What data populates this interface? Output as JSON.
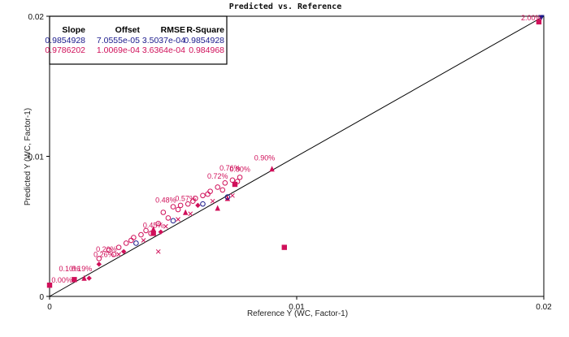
{
  "chart_data": {
    "type": "scatter",
    "title": "Predicted vs. Reference",
    "xlabel": "Reference Y (WC, Factor-1)",
    "ylabel": "Predicted Y (WC, Factor-1)",
    "xlim": [
      0,
      0.02
    ],
    "ylim": [
      0,
      0.02
    ],
    "x_ticks": [
      0,
      0.01,
      0.02
    ],
    "y_ticks": [
      0,
      0.01,
      0.02
    ],
    "x_tick_labels": [
      "0",
      "0.01",
      "0.02"
    ],
    "y_tick_labels": [
      "0",
      "0.01",
      "0.02"
    ],
    "grid": false,
    "reference_line": {
      "from": [
        0,
        0
      ],
      "to": [
        0.02,
        0.02
      ]
    },
    "stats_table": {
      "headers": [
        "Slope",
        "Offset",
        "RMSE",
        "R-Square"
      ],
      "rows": [
        {
          "color": "#1a1a8c",
          "values": [
            "0.9854928",
            "7.0555e-05",
            "3.5037e-04",
            "0.9854928"
          ]
        },
        {
          "color": "#d0105a",
          "values": [
            "0.9786202",
            "1.0069e-04",
            "3.6364e-04",
            "0.984968"
          ]
        }
      ]
    },
    "point_labels": [
      {
        "text": "2.00%",
        "x": 0.0195,
        "y": 0.0197
      },
      {
        "text": "0.90%",
        "x": 0.0087,
        "y": 0.0097
      },
      {
        "text": "0.72%",
        "x": 0.0068,
        "y": 0.0084
      },
      {
        "text": "0.76%",
        "x": 0.0073,
        "y": 0.009
      },
      {
        "text": "0.80%",
        "x": 0.0077,
        "y": 0.0089
      },
      {
        "text": "0.57%",
        "x": 0.0055,
        "y": 0.0068
      },
      {
        "text": "0.48%",
        "x": 0.0047,
        "y": 0.0067
      },
      {
        "text": "0.45%",
        "x": 0.0042,
        "y": 0.0049
      },
      {
        "text": "0.26%",
        "x": 0.0022,
        "y": 0.0028
      },
      {
        "text": "0.20%",
        "x": 0.0023,
        "y": 0.0032
      },
      {
        "text": "0.19%",
        "x": 0.0013,
        "y": 0.0018
      },
      {
        "text": "0.10%",
        "x": 0.0008,
        "y": 0.0018
      },
      {
        "text": "0.00%",
        "x": 0.0005,
        "y": 0.001
      }
    ],
    "series": [
      {
        "marker": "square",
        "color": "#d0105a",
        "points": [
          [
            0.0,
            0.0008
          ],
          [
            0.001,
            0.0012
          ],
          [
            0.0095,
            0.0035
          ],
          [
            0.0042,
            0.0045
          ],
          [
            0.0075,
            0.008
          ],
          [
            0.0198,
            0.0196
          ]
        ]
      },
      {
        "marker": "triangle",
        "color": "#d0105a",
        "points": [
          [
            0.0014,
            0.0013
          ],
          [
            0.0055,
            0.006
          ],
          [
            0.0068,
            0.0063
          ],
          [
            0.009,
            0.0091
          ],
          [
            0.0042,
            0.0048
          ],
          [
            0.0072,
            0.007
          ]
        ]
      },
      {
        "marker": "diamond",
        "color": "#d0105a",
        "points": [
          [
            0.0016,
            0.0013
          ],
          [
            0.002,
            0.0023
          ],
          [
            0.003,
            0.0032
          ],
          [
            0.0045,
            0.0046
          ],
          [
            0.006,
            0.0065
          ]
        ]
      },
      {
        "marker": "circle",
        "color": "#d0105a",
        "points": [
          [
            0.002,
            0.0027
          ],
          [
            0.0024,
            0.0033
          ],
          [
            0.0028,
            0.0035
          ],
          [
            0.0031,
            0.0038
          ],
          [
            0.0034,
            0.0042
          ],
          [
            0.0037,
            0.0044
          ],
          [
            0.0041,
            0.0045
          ],
          [
            0.0044,
            0.0052
          ],
          [
            0.0046,
            0.006
          ],
          [
            0.0048,
            0.0056
          ],
          [
            0.005,
            0.0064
          ],
          [
            0.0053,
            0.0065
          ],
          [
            0.0056,
            0.0066
          ],
          [
            0.0059,
            0.007
          ],
          [
            0.0062,
            0.0072
          ],
          [
            0.0065,
            0.0075
          ],
          [
            0.0068,
            0.0078
          ],
          [
            0.0071,
            0.0081
          ],
          [
            0.0074,
            0.0083
          ],
          [
            0.0077,
            0.0085
          ],
          [
            0.0026,
            0.003
          ],
          [
            0.0033,
            0.004
          ],
          [
            0.0039,
            0.0047
          ],
          [
            0.0052,
            0.0062
          ],
          [
            0.0058,
            0.0068
          ],
          [
            0.0064,
            0.0073
          ],
          [
            0.007,
            0.0076
          ],
          [
            0.0076,
            0.0082
          ]
        ]
      },
      {
        "marker": "x",
        "color": "#d0105a",
        "points": [
          [
            0.0028,
            0.003
          ],
          [
            0.0038,
            0.004
          ],
          [
            0.0047,
            0.005
          ],
          [
            0.0057,
            0.0059
          ],
          [
            0.0066,
            0.0068
          ],
          [
            0.0074,
            0.0072
          ],
          [
            0.0044,
            0.0032
          ],
          [
            0.0052,
            0.0055
          ]
        ]
      },
      {
        "marker": "triangle-down",
        "color": "#1a1a8c",
        "points": [
          [
            0.0199,
            0.0199
          ]
        ]
      },
      {
        "marker": "circle",
        "color": "#1a1a8c",
        "points": [
          [
            0.0035,
            0.0038
          ],
          [
            0.005,
            0.0054
          ],
          [
            0.0062,
            0.0066
          ],
          [
            0.0072,
            0.0071
          ]
        ]
      }
    ]
  }
}
